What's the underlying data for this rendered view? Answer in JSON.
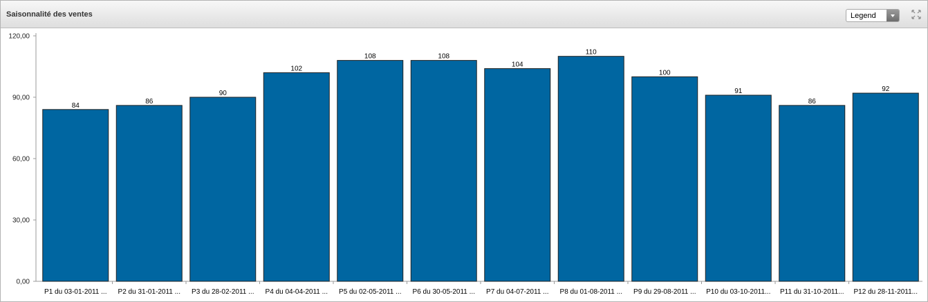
{
  "panel": {
    "title": "Saisonnalité des ventes",
    "legend_select": {
      "value": "Legend"
    },
    "expand_icon": "expand-arrows-icon"
  },
  "chart_data": {
    "type": "bar",
    "title": "",
    "xlabel": "",
    "ylabel": "",
    "ylim": [
      0,
      120
    ],
    "yticks": [
      "0,00",
      "30,00",
      "60,00",
      "90,00",
      "120,00"
    ],
    "categories": [
      "P1  du 03-01-2011 ...",
      "P2  du 31-01-2011 ...",
      "P3  du 28-02-2011 ...",
      "P4  du 04-04-2011 ...",
      "P5  du 02-05-2011 ...",
      "P6  du 30-05-2011 ...",
      "P7  du 04-07-2011 ...",
      "P8  du 01-08-2011 ...",
      "P9  du 29-08-2011 ...",
      "P10  du 03-10-2011...",
      "P11  du 31-10-2011...",
      "P12  du 28-11-2011..."
    ],
    "values": [
      84,
      86,
      90,
      102,
      108,
      108,
      104,
      110,
      100,
      91,
      86,
      92
    ],
    "bar_color": "#0066a1",
    "grid": false,
    "legend": "none"
  }
}
